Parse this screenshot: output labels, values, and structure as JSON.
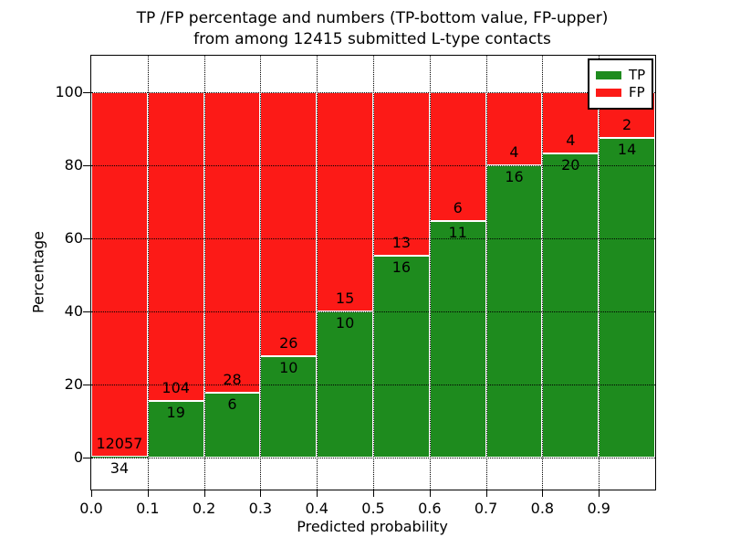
{
  "figure": {
    "title_line1": "TP /FP percentage and numbers (TP-bottom value, FP-upper)",
    "title_line2": "from among 12415 submitted L-type contacts",
    "xlabel": "Predicted probability",
    "ylabel": "Percentage"
  },
  "legend": {
    "position": "upper right",
    "items": [
      {
        "label": "TP",
        "color": "#1e8b1e"
      },
      {
        "label": "FP",
        "color": "#fc1a17"
      }
    ]
  },
  "chart_data": {
    "type": "bar",
    "stacked": true,
    "title": "TP /FP percentage and numbers (TP-bottom value, FP-upper) from among 12415 submitted L-type contacts",
    "xlabel": "Predicted probability",
    "ylabel": "Percentage",
    "total_submitted_contacts": 12415,
    "grid": "dotted",
    "legend_position": "upper right",
    "xlim": [
      0.0,
      1.0
    ],
    "ylim": [
      -8.75,
      110
    ],
    "x_tick_labels": [
      "0.0",
      "0.1",
      "0.2",
      "0.3",
      "0.4",
      "0.5",
      "0.6",
      "0.7",
      "0.8",
      "0.9"
    ],
    "y_ticks": [
      0,
      20,
      40,
      60,
      80,
      100
    ],
    "categories": [
      "0.0-0.1",
      "0.1-0.2",
      "0.2-0.3",
      "0.3-0.4",
      "0.4-0.5",
      "0.5-0.6",
      "0.6-0.7",
      "0.7-0.8",
      "0.8-0.9",
      "0.9-1.0"
    ],
    "series": [
      {
        "name": "TP",
        "color": "#1e8b1e",
        "counts": [
          34,
          19,
          6,
          10,
          10,
          16,
          11,
          16,
          20,
          14
        ]
      },
      {
        "name": "FP",
        "color": "#fc1a17",
        "counts": [
          12057,
          104,
          28,
          26,
          15,
          13,
          6,
          4,
          4,
          2
        ]
      }
    ],
    "tp_percent_of_bin": [
      0.28,
      15.45,
      17.65,
      27.78,
      40.0,
      55.17,
      64.71,
      80.0,
      83.33,
      87.5
    ]
  }
}
